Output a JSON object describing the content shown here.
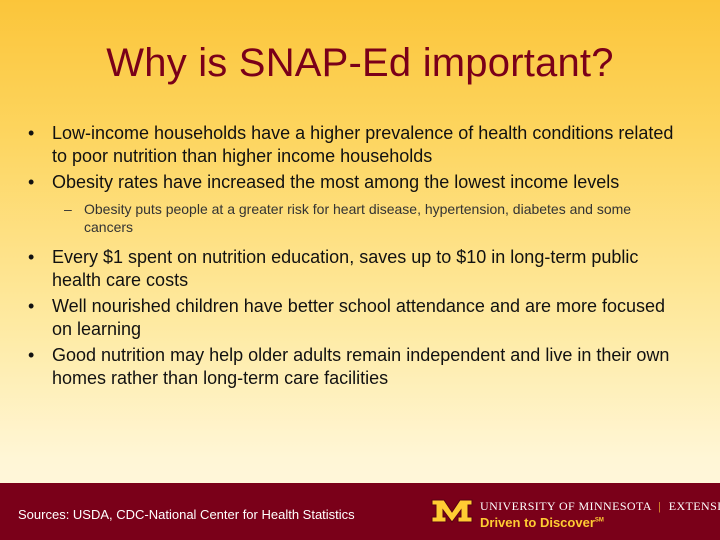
{
  "slide": {
    "title": "Why is SNAP-Ed important?",
    "bullets": [
      {
        "marker": "•",
        "text": "Low-income households have a higher prevalence of health conditions related to poor nutrition than higher income households"
      },
      {
        "marker": "•",
        "text": "Obesity rates have increased the most among the lowest income levels"
      },
      {
        "marker": "–",
        "text": "Obesity puts people at a greater risk for heart disease, hypertension, diabetes and some cancers"
      },
      {
        "marker": "•",
        "text": "Every $1 spent on nutrition education, saves up to $10 in long-term public health care costs"
      },
      {
        "marker": "•",
        "text": "Well nourished children have better school attendance and are more focused on learning"
      },
      {
        "marker": "•",
        "text": "Good nutrition may help older adults remain independent and live in their own homes rather than long-term care facilities"
      }
    ]
  },
  "footer": {
    "sources": "Sources: USDA, CDC-National Center for Health Statistics",
    "logo": {
      "mark": "M",
      "university": "UNIVERSITY OF MINNESOTA",
      "separator": "|",
      "unit": "EXTENSION",
      "tagline": "Driven to Discover",
      "tagline_mark": "SM"
    }
  },
  "colors": {
    "maroon": "#7a0019",
    "gold": "#ffcc33",
    "background_top": "#fbc53a",
    "background_bottom": "#fff8e0"
  }
}
